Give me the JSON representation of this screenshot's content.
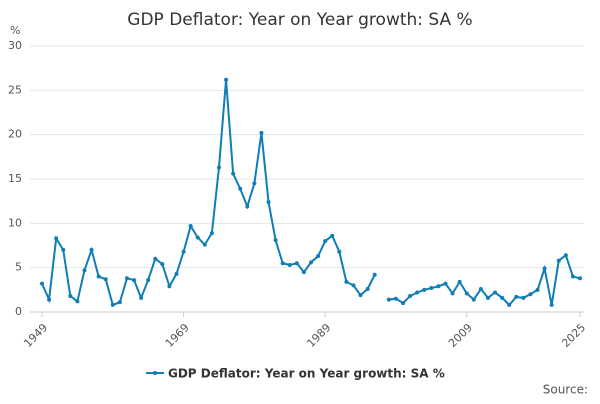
{
  "chart_data": {
    "type": "line",
    "title": "GDP Deflator: Year on Year growth: SA %",
    "y_unit": "%",
    "source": "Source:",
    "x": [
      1949,
      1950,
      1951,
      1952,
      1953,
      1954,
      1955,
      1956,
      1957,
      1958,
      1959,
      1960,
      1961,
      1962,
      1963,
      1964,
      1965,
      1966,
      1967,
      1968,
      1969,
      1970,
      1971,
      1972,
      1973,
      1974,
      1975,
      1976,
      1977,
      1978,
      1979,
      1980,
      1981,
      1982,
      1983,
      1984,
      1985,
      1986,
      1987,
      1988,
      1989,
      1990,
      1991,
      1992,
      1993,
      1994,
      1995,
      1996,
      1997,
      1998,
      1999,
      2000,
      2001,
      2002,
      2003,
      2004,
      2005,
      2006,
      2007,
      2008,
      2009,
      2010,
      2011,
      2012,
      2013,
      2014,
      2015,
      2016,
      2017,
      2018,
      2019,
      2020,
      2021,
      2022,
      2023,
      2024,
      2025
    ],
    "series": [
      {
        "name": "GDP Deflator: Year on Year growth: SA %",
        "color": "#0f7db6",
        "values": [
          3.2,
          1.4,
          8.3,
          7.0,
          1.8,
          1.2,
          4.7,
          7.0,
          4.0,
          3.7,
          0.8,
          1.1,
          3.8,
          3.6,
          1.6,
          3.6,
          6.0,
          5.4,
          2.9,
          4.3,
          6.8,
          9.7,
          8.4,
          7.6,
          8.9,
          16.3,
          26.2,
          15.6,
          13.9,
          11.9,
          14.5,
          20.2,
          12.4,
          8.1,
          5.5,
          5.3,
          5.5,
          4.5,
          5.6,
          6.3,
          8.0,
          8.6,
          6.8,
          3.4,
          3.0,
          1.9,
          2.6,
          4.2,
          null,
          1.4,
          1.5,
          1.0,
          1.8,
          2.2,
          2.5,
          2.7,
          2.9,
          3.2,
          2.1,
          3.4,
          2.1,
          1.4,
          2.6,
          1.6,
          2.2,
          1.6,
          0.8,
          1.7,
          1.6,
          2.0,
          2.5,
          4.9,
          0.8,
          5.8,
          6.4,
          4.0,
          3.8
        ]
      }
    ],
    "xlim": [
      1949,
      2025
    ],
    "xticks": [
      1949,
      1969,
      1989,
      2009,
      2025
    ],
    "ylim": [
      0,
      30
    ],
    "yticks": [
      0,
      5,
      10,
      15,
      20,
      25,
      30
    ],
    "grid": true
  }
}
